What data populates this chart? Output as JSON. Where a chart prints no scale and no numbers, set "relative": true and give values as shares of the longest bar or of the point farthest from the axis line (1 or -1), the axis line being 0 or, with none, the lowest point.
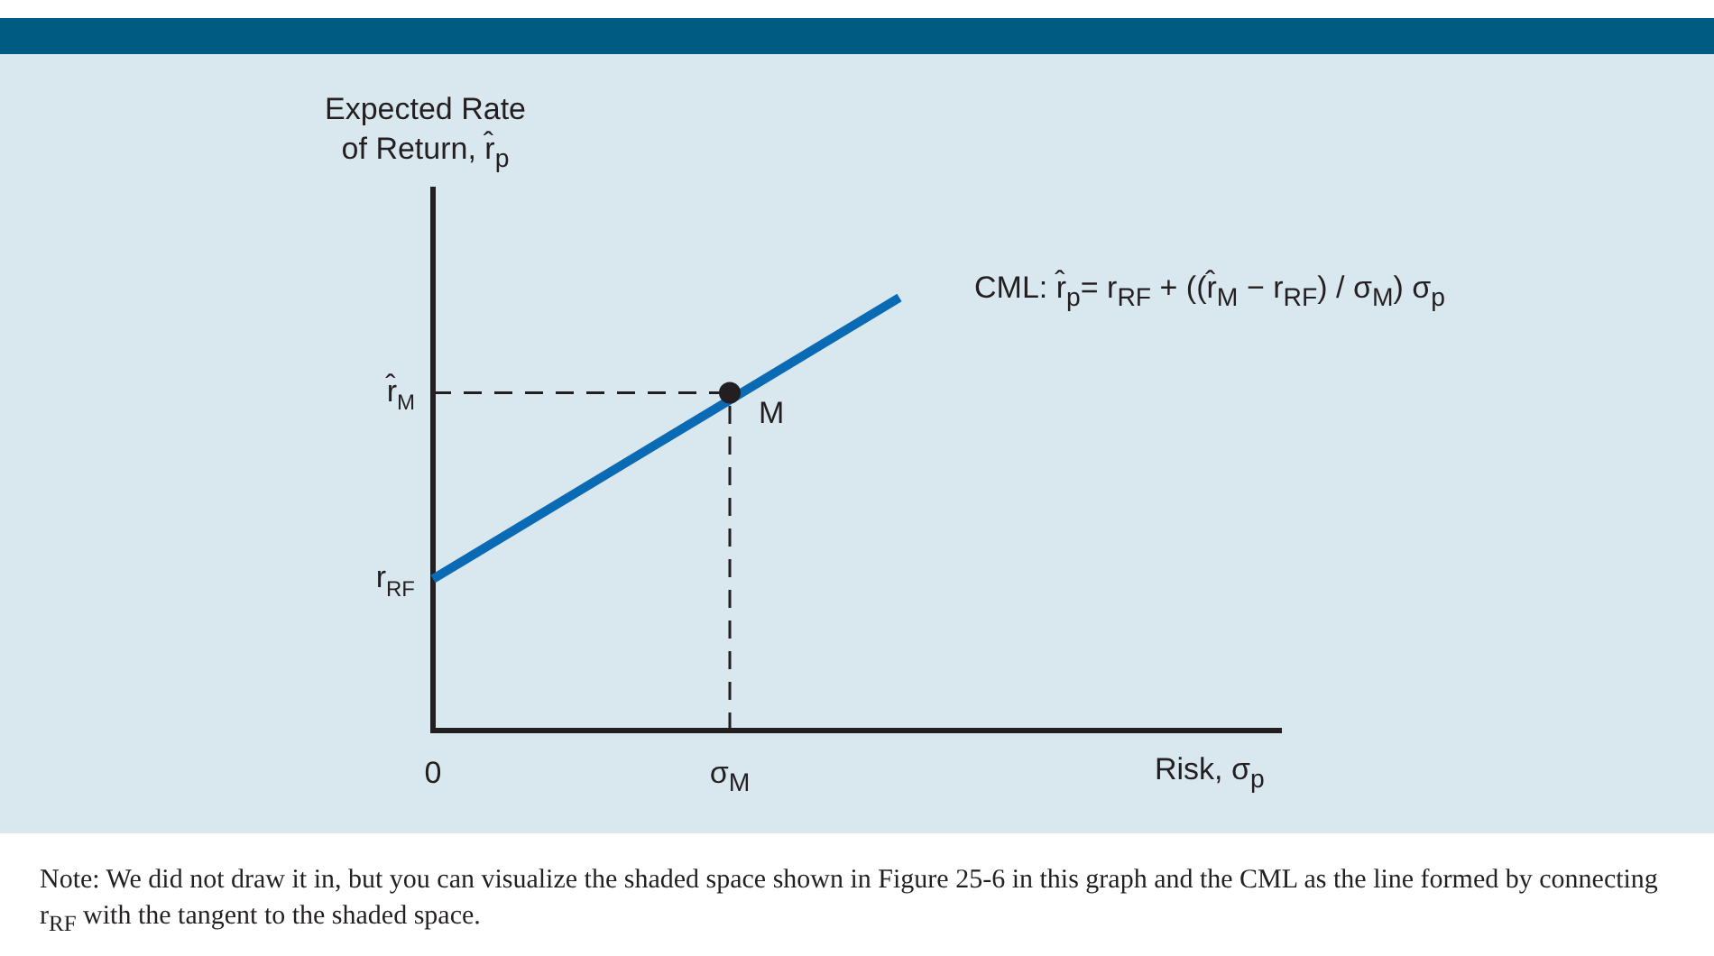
{
  "chart_data": {
    "type": "line",
    "relative": true,
    "xlabel": "Risk, σ$_{p}$",
    "ylabel": "Expected Rate\nof Return, r̂$_{p}$",
    "legend": false,
    "grid": false,
    "categories": [
      "0",
      null,
      null,
      null,
      null,
      null,
      null,
      "σ$_{M}$",
      null,
      null,
      null,
      null,
      null,
      null,
      null,
      null,
      null,
      null,
      null,
      null,
      null
    ],
    "series": [
      {
        "color": "#0a6ab4",
        "marker": "none",
        "values": [
          0.35,
          null,
          null,
          null,
          null,
          null,
          null,
          null,
          null,
          null,
          null,
          1,
          null,
          null,
          null,
          null,
          null,
          null,
          null,
          null,
          null
        ]
      },
      {
        "type": "scatter",
        "color": "#231f20",
        "marker": "circle",
        "values": [
          null,
          null,
          null,
          null,
          null,
          null,
          null,
          0.78,
          null,
          null,
          null,
          null,
          null,
          null,
          null,
          null,
          null,
          null,
          null,
          null,
          null
        ]
      }
    ],
    "ref_lines": [
      {
        "axis": "y",
        "value": 0.78,
        "label": "r̂$_{M}$",
        "color": "#231f20",
        "line_style": "dashed"
      },
      {
        "axis": "x",
        "value": "σ$_{M}$",
        "color": "#231f20",
        "line_style": "dashed"
      }
    ],
    "annotations": [
      {
        "text": "M",
        "x": "σ$_{M}$",
        "y": 0.78
      },
      {
        "text": "r$_{RF}$",
        "x": "0",
        "y": 0.35
      },
      "CML: r̂$_{p}$= r$_{RF}$ + ((r̂$_{M}$ − r$_{RF}$) / σ$_{M}$) σ$_{p}$",
      "Note: We did not draw it in, but you can visualize the shaded space shown in Figure 25-6 in this graph and the CML as the line formed by connecting r$_{RF}$ with the tangent to the shaded space."
    ]
  }
}
